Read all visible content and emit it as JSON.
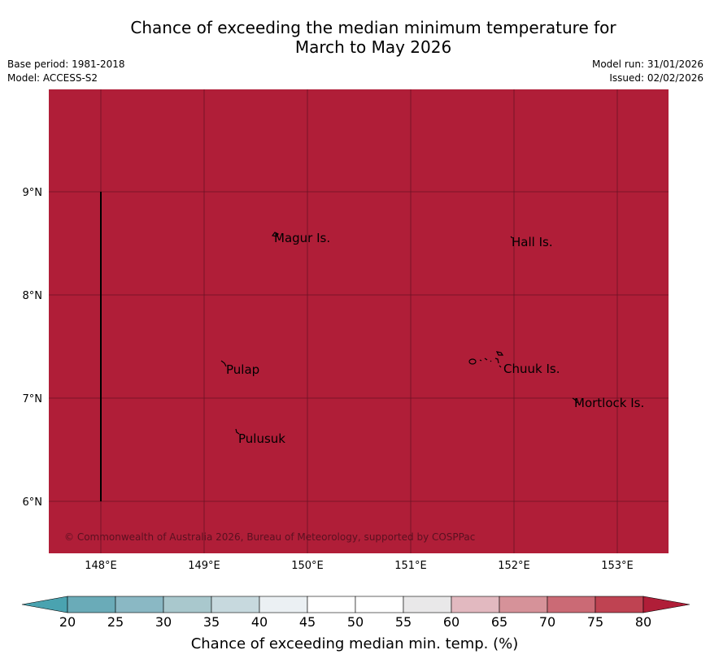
{
  "title": {
    "line1": "Chance of exceeding the median minimum temperature for",
    "line2": "March to May 2026"
  },
  "meta": {
    "base_period": "Base period: 1981-2018",
    "model": "Model: ACCESS-S2",
    "model_run": "Model run: 31/01/2026",
    "issued": "Issued: 02/02/2026"
  },
  "map": {
    "fill_color": "#b01e38",
    "fill_value_percent": ">80",
    "lon_ticks": [
      "148°E",
      "149°E",
      "150°E",
      "151°E",
      "152°E",
      "153°E"
    ],
    "lat_ticks": [
      "9°N",
      "8°N",
      "7°N",
      "6°N"
    ],
    "places": [
      {
        "name": "Magur Is."
      },
      {
        "name": "Hall Is."
      },
      {
        "name": "Pulap"
      },
      {
        "name": "Chuuk Is."
      },
      {
        "name": "Mortlock Is."
      },
      {
        "name": "Pulusuk"
      }
    ],
    "copyright": "© Commonwealth of Australia 2026, Bureau of Meteorology, supported by COSPPac"
  },
  "colorbar": {
    "label": "Chance of exceeding median min. temp. (%)",
    "ticks": [
      "20",
      "25",
      "30",
      "35",
      "40",
      "45",
      "50",
      "55",
      "60",
      "65",
      "70",
      "75",
      "80"
    ],
    "colors": [
      "#6aabb8",
      "#8ab8c4",
      "#a9c8cd",
      "#c7d9de",
      "#ebf0f3",
      "#ffffff",
      "#ffffff",
      "#e9e8e9",
      "#e2b9c0",
      "#d69299",
      "#cb6a75",
      "#bf4352"
    ],
    "under_color": "#4aa3b0",
    "over_color": "#b01e38"
  }
}
